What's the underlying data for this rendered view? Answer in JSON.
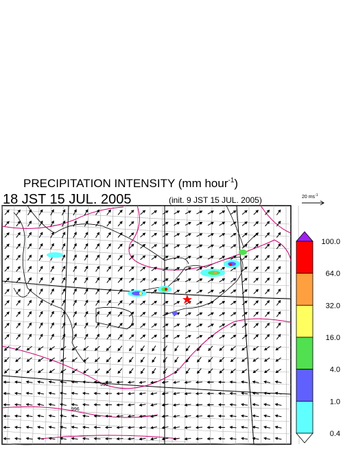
{
  "header": {
    "title": "PRECIPITATION INTENSITY (mm hour",
    "title_sup": "-1",
    "title_end": ")",
    "time": "18 JST 15 JUL. 2005",
    "init": "(init. 9 JST 15 JUL. 2005)"
  },
  "scale": {
    "label": "20 ms",
    "sup": "-1"
  },
  "contours": [
    "996",
    "996"
  ],
  "colorbar": {
    "labels": [
      "100.0",
      "64.0",
      "32.0",
      "16.0",
      "4.0",
      "1.0",
      "0.4"
    ],
    "colors": [
      "#ff0000",
      "#ffa040",
      "#ffff60",
      "#50e050",
      "#6060ff",
      "#60ffff"
    ],
    "over": "#a020f0",
    "under": "#ffffff"
  }
}
